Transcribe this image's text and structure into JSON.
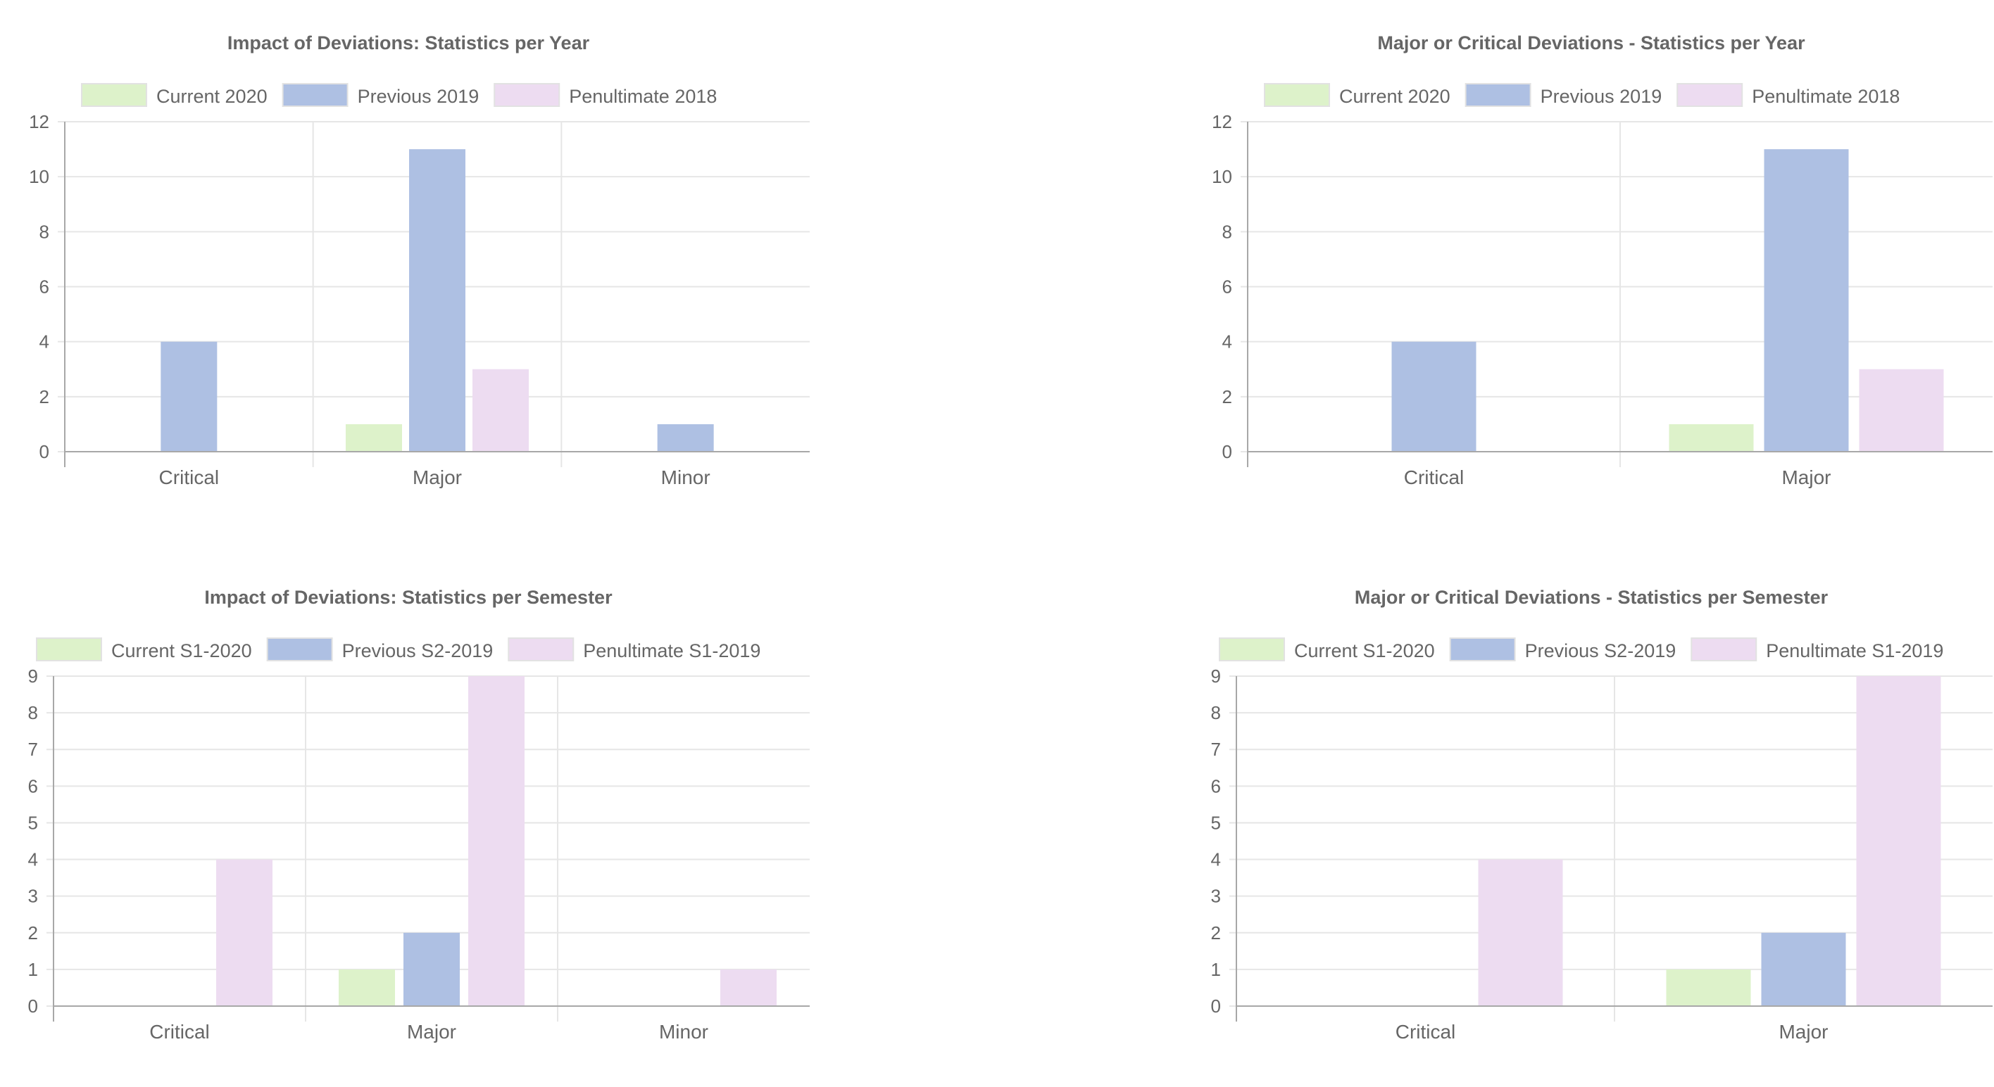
{
  "colors": {
    "current": "#ddf2ca",
    "previous": "#aec0e3",
    "penultimate": "#eddcf1"
  },
  "chart_data": [
    {
      "type": "bar",
      "title": "Impact of Deviations: Statistics per Year",
      "categories": [
        "Critical",
        "Major",
        "Minor"
      ],
      "series": [
        {
          "name": "Current 2020",
          "values": [
            0,
            1,
            0
          ]
        },
        {
          "name": "Previous 2019",
          "values": [
            4,
            11,
            1
          ]
        },
        {
          "name": "Penultimate 2018",
          "values": [
            0,
            3,
            0
          ]
        }
      ],
      "ylim": [
        0,
        12
      ],
      "yticks": [
        0,
        2,
        4,
        6,
        8,
        10,
        12
      ],
      "grid": true,
      "legend": "top"
    },
    {
      "type": "bar",
      "title": "Major or Critical Deviations - Statistics per Year",
      "categories": [
        "Critical",
        "Major"
      ],
      "series": [
        {
          "name": "Current 2020",
          "values": [
            0,
            1
          ]
        },
        {
          "name": "Previous 2019",
          "values": [
            4,
            11
          ]
        },
        {
          "name": "Penultimate 2018",
          "values": [
            0,
            3
          ]
        }
      ],
      "ylim": [
        0,
        12
      ],
      "yticks": [
        0,
        2,
        4,
        6,
        8,
        10,
        12
      ],
      "grid": true,
      "legend": "top"
    },
    {
      "type": "bar",
      "title": "Impact of Deviations: Statistics per Semester",
      "categories": [
        "Critical",
        "Major",
        "Minor"
      ],
      "series": [
        {
          "name": "Current S1-2020",
          "values": [
            0,
            1,
            0
          ]
        },
        {
          "name": "Previous S2-2019",
          "values": [
            0,
            2,
            0
          ]
        },
        {
          "name": "Penultimate S1-2019",
          "values": [
            4,
            9,
            1
          ]
        }
      ],
      "ylim": [
        0,
        9
      ],
      "yticks": [
        0,
        1,
        2,
        3,
        4,
        5,
        6,
        7,
        8,
        9
      ],
      "grid": true,
      "legend": "top"
    },
    {
      "type": "bar",
      "title": "Major or Critical Deviations - Statistics per Semester",
      "categories": [
        "Critical",
        "Major"
      ],
      "series": [
        {
          "name": "Current S1-2020",
          "values": [
            0,
            1
          ]
        },
        {
          "name": "Previous S2-2019",
          "values": [
            0,
            2
          ]
        },
        {
          "name": "Penultimate S1-2019",
          "values": [
            4,
            9
          ]
        }
      ],
      "ylim": [
        0,
        9
      ],
      "yticks": [
        0,
        1,
        2,
        3,
        4,
        5,
        6,
        7,
        8,
        9
      ],
      "grid": true,
      "legend": "top"
    }
  ]
}
